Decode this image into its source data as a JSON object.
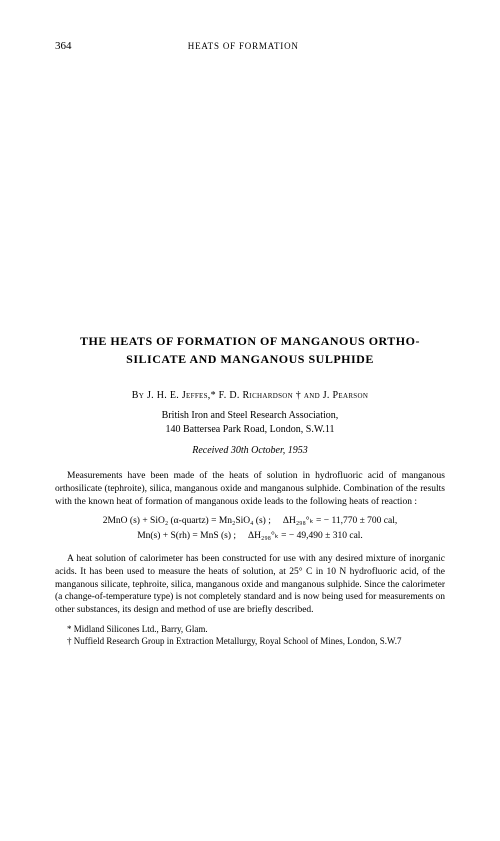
{
  "page": {
    "number": "364",
    "running_head": "HEATS OF FORMATION"
  },
  "title": "THE HEATS OF FORMATION OF MANGANOUS ORTHO-SILICATE AND MANGANOUS SULPHIDE",
  "authors": {
    "by": "By",
    "line": "J. H. E. Jeffes,* F. D. Richardson † and J. Pearson"
  },
  "affiliation": {
    "line1": "British Iron and Steel Research Association,",
    "line2": "140 Battersea Park Road, London, S.W.11"
  },
  "received": "Received 30th October, 1953",
  "abstract": {
    "para1": "Measurements have been made of the heats of solution in hydrofluoric acid of manganous orthosilicate (tephroite), silica, manganous oxide and manganous sulphide. Combination of the results with the known heat of formation of manganous oxide leads to the following heats of reaction :"
  },
  "equations": {
    "eq1_left": "2MnO (s) + SiO₂ (α-quartz) = Mn₂SiO₄ (s) ;",
    "eq1_right": "ΔH₂₉₈°ₖ = − 11,770 ± 700 cal,",
    "eq2_left": "Mn(s) + S(rh) = MnS (s) ;",
    "eq2_right": "ΔH₂₉₈°ₖ = − 49,490 ± 310 cal."
  },
  "body": {
    "para1": "A heat solution of calorimeter has been constructed for use with any desired mixture of inorganic acids. It has been used to measure the heats of solution, at 25° C in 10 N hydrofluoric acid, of the manganous silicate, tephroite, silica, manganous oxide and manganous sulphide. Since the calorimeter (a change-of-temperature type) is not completely standard and is now being used for measurements on other substances, its design and method of use are briefly described."
  },
  "footnotes": {
    "note1": "* Midland Silicones Ltd., Barry, Glam.",
    "note2": "† Nuffield Research Group in Extraction Metallurgy, Royal School of Mines, London, S.W.7"
  },
  "colors": {
    "background": "#ffffff",
    "text": "#000000"
  },
  "typography": {
    "body_fontsize": 9.5,
    "title_fontsize": 12,
    "footnote_fontsize": 9,
    "font_family": "Georgia, Times New Roman, serif"
  }
}
